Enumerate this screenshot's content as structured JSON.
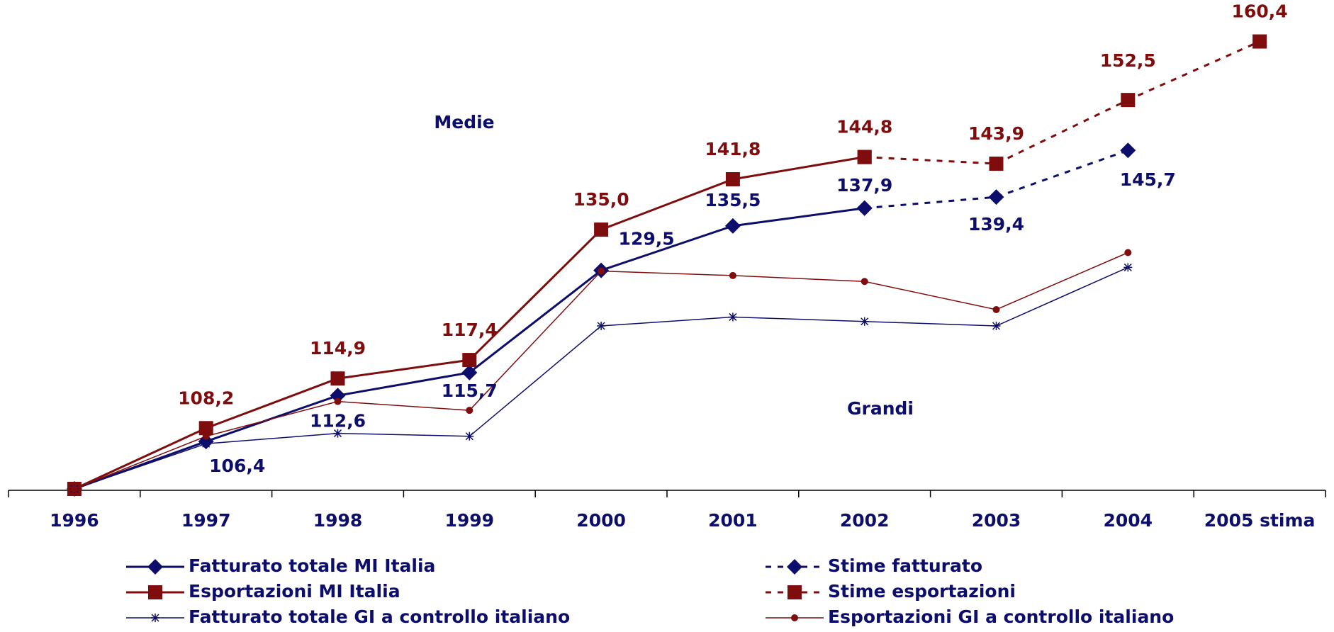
{
  "chart_data": {
    "type": "line",
    "categories": [
      "1996",
      "1997",
      "1998",
      "1999",
      "2000",
      "2001",
      "2002",
      "2003",
      "2004",
      "2005 stima"
    ],
    "ylim": [
      100,
      166
    ],
    "annotations": [
      "Medie",
      "Grandi"
    ],
    "series": [
      {
        "name": "Fatturato totale MI Italia",
        "color": "#0d0d6b",
        "marker": "diamond",
        "dashed": false,
        "width": 3,
        "values": [
          100,
          106.4,
          112.6,
          115.7,
          129.5,
          135.5,
          137.9,
          null,
          null,
          null
        ],
        "value_labels": [
          null,
          "106,4",
          "112,6",
          "115,7",
          "129,5",
          "135,5",
          "137,9",
          null,
          null,
          null
        ]
      },
      {
        "name": "Esportazioni MI Italia",
        "color": "#7f0d0d",
        "marker": "square",
        "dashed": false,
        "width": 3,
        "values": [
          100,
          108.2,
          114.9,
          117.4,
          135.0,
          141.8,
          144.8,
          null,
          null,
          null
        ],
        "value_labels": [
          null,
          "108,2",
          "114,9",
          "117,4",
          "135,0",
          "141,8",
          "144,8",
          null,
          null,
          null
        ]
      },
      {
        "name": "Stime fatturato",
        "color": "#0d0d6b",
        "marker": "diamond",
        "dashed": true,
        "width": 3,
        "values": [
          null,
          null,
          null,
          null,
          null,
          null,
          137.9,
          139.4,
          145.7,
          null
        ],
        "value_labels": [
          null,
          null,
          null,
          null,
          null,
          null,
          null,
          "139,4",
          "145,7",
          null
        ]
      },
      {
        "name": "Stime esportazioni",
        "color": "#7f0d0d",
        "marker": "square",
        "dashed": true,
        "width": 3,
        "values": [
          null,
          null,
          null,
          null,
          null,
          null,
          144.8,
          143.9,
          152.5,
          160.4
        ],
        "value_labels": [
          null,
          null,
          null,
          null,
          null,
          null,
          null,
          "143,9",
          "152,5",
          "160,4"
        ]
      },
      {
        "name": "Fatturato totale GI a controllo italiano",
        "color": "#0d0d6b",
        "marker": "star",
        "dashed": false,
        "width": 1.5,
        "values": [
          100,
          106.1,
          107.5,
          107.1,
          122.0,
          123.2,
          122.6,
          122.0,
          129.9,
          null
        ]
      },
      {
        "name": "Esportazioni GI a controllo italiano",
        "color": "#7f0d0d",
        "marker": "circle",
        "dashed": false,
        "width": 1.5,
        "values": [
          100,
          107.1,
          111.8,
          110.6,
          129.4,
          128.8,
          128.0,
          124.2,
          131.9,
          null
        ]
      }
    ]
  }
}
